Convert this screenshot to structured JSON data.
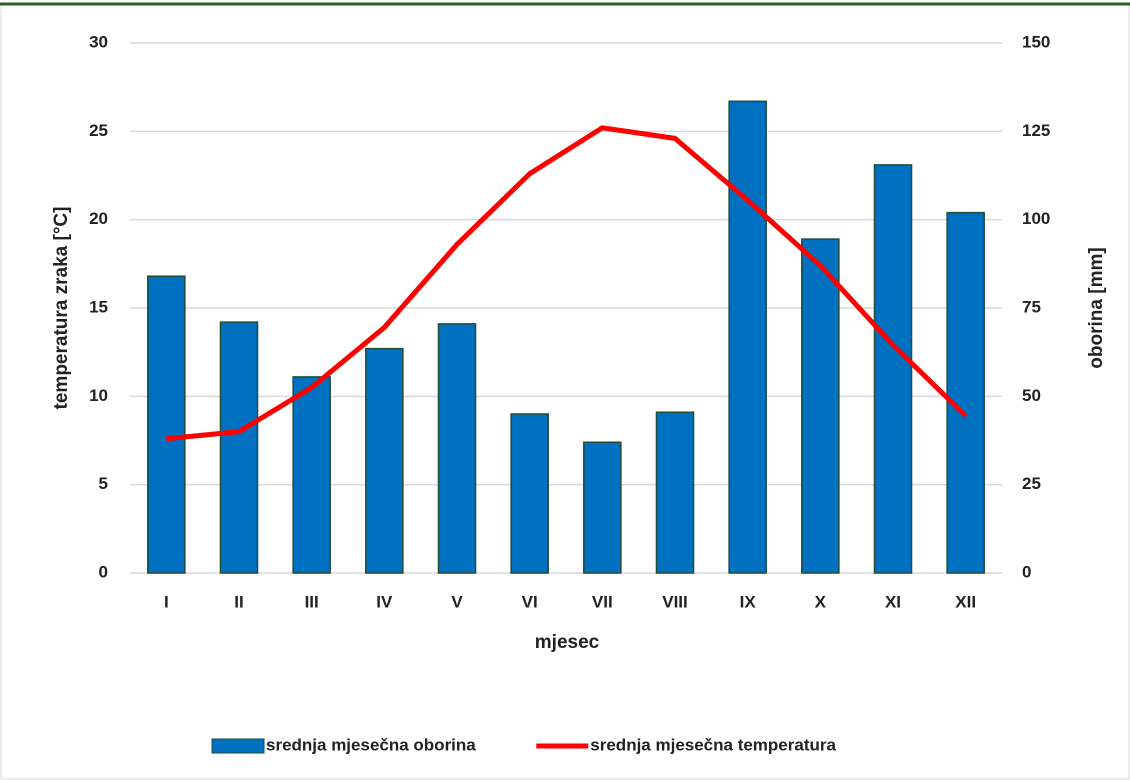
{
  "chart_data": {
    "type": "bar",
    "categories": [
      "I",
      "II",
      "III",
      "IV",
      "V",
      "VI",
      "VII",
      "VIII",
      "IX",
      "X",
      "XI",
      "XII"
    ],
    "series": [
      {
        "name": "srednja mjesečna oborina",
        "type": "bar",
        "axis": "y2",
        "color": "#0070c0",
        "values": [
          84,
          71,
          55.5,
          63.5,
          70.5,
          45,
          37,
          45.5,
          133.5,
          94.5,
          115.5,
          102
        ]
      },
      {
        "name": "srednja mjesečna temperatura",
        "type": "line",
        "axis": "y",
        "color": "#ff0000",
        "values": [
          7.6,
          8.0,
          10.5,
          13.9,
          18.6,
          22.6,
          25.2,
          24.6,
          21.1,
          17.4,
          12.9,
          8.9
        ]
      }
    ],
    "xlabel": "mjesec",
    "ylabel": "temperatura zraka [°C]",
    "y2label": "oborina [mm]",
    "ylim": [
      0,
      30
    ],
    "yticks": [
      0,
      5,
      10,
      15,
      20,
      25,
      30
    ],
    "y2lim": [
      0,
      150
    ],
    "y2ticks": [
      0,
      25,
      50,
      75,
      100,
      125,
      150
    ],
    "grid": true,
    "legend": "bottom"
  }
}
